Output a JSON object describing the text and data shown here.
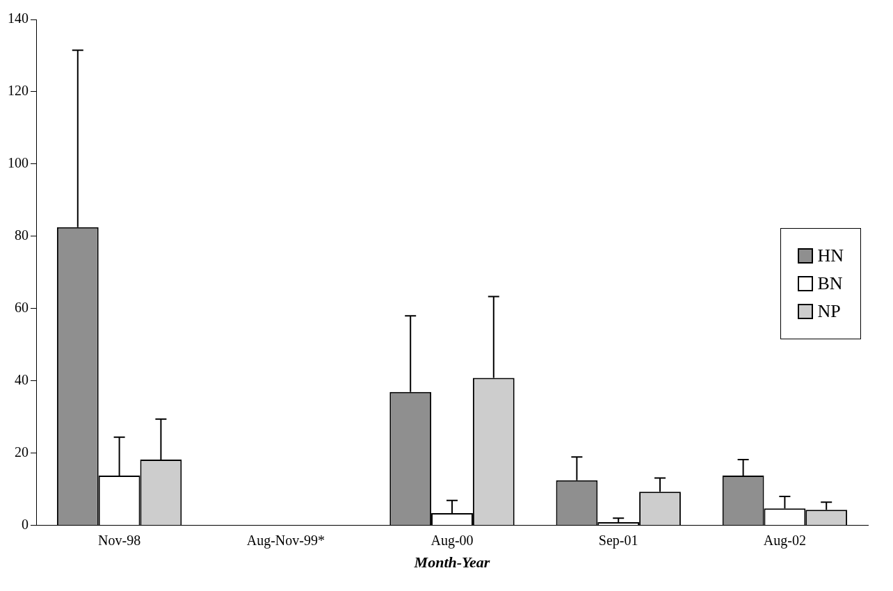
{
  "chart_data": {
    "type": "bar",
    "xlabel": "Month-Year",
    "categories": [
      "Nov-98",
      "Aug-Nov-99*",
      "Aug-00",
      "Sep-01",
      "Aug-02"
    ],
    "series": [
      {
        "name": "HN",
        "color": "#8f8f8f",
        "values": [
          82.5,
          0,
          36.9,
          12.5,
          13.8
        ],
        "errors": [
          [
            82.5,
            131.5
          ],
          null,
          [
            36.9,
            58
          ],
          [
            12.5,
            18.9
          ],
          [
            13.8,
            18.2
          ]
        ]
      },
      {
        "name": "BN",
        "color": "#ffffff",
        "values": [
          13.8,
          0,
          3.4,
          0.9,
          4.7
        ],
        "errors": [
          [
            13.8,
            24.4
          ],
          null,
          [
            3.4,
            6.9
          ],
          [
            0.9,
            2
          ],
          [
            4.7,
            8
          ]
        ]
      },
      {
        "name": "NP",
        "color": "#cdcdcd",
        "values": [
          18.2,
          0,
          40.8,
          9.3,
          4.3
        ],
        "errors": [
          [
            18.2,
            29.4
          ],
          null,
          [
            40.8,
            63.3
          ],
          [
            9.3,
            13.1
          ],
          [
            4.3,
            6.4
          ]
        ]
      }
    ],
    "ylim": [
      0,
      140
    ],
    "yticks": [
      0,
      20,
      40,
      60,
      80,
      100,
      120,
      140
    ],
    "grid": false,
    "legend": "right"
  }
}
